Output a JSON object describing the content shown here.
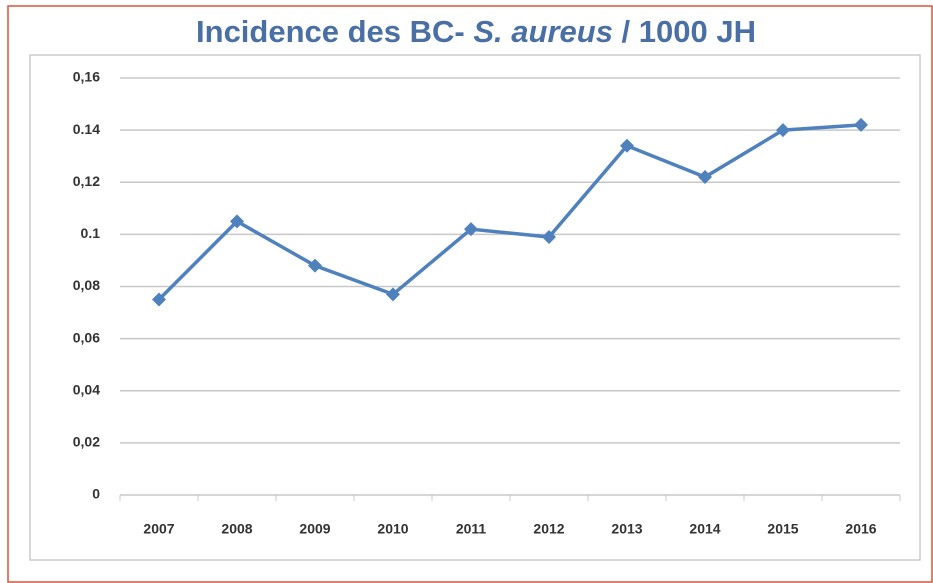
{
  "chart_data": {
    "type": "line",
    "title": [
      "Incidence des BC- ",
      "S. aureus",
      " / 1000 JH"
    ],
    "categories": [
      "2007",
      "2008",
      "2009",
      "2010",
      "2011",
      "2012",
      "2013",
      "2014",
      "2015",
      "2016"
    ],
    "series": [
      {
        "color": "#4f81bd",
        "values": [
          0.075,
          0.105,
          0.088,
          0.077,
          0.102,
          0.099,
          0.134,
          0.122,
          0.14,
          0.142
        ]
      }
    ],
    "ylim": [
      0,
      0.16
    ],
    "yticks": [
      {
        "value": 0,
        "label": "0"
      },
      {
        "value": 0.02,
        "label": "0,02"
      },
      {
        "value": 0.04,
        "label": "0,04"
      },
      {
        "value": 0.06,
        "label": "0,06"
      },
      {
        "value": 0.08,
        "label": "0,08"
      },
      0.1,
      {
        "value": 0.12,
        "label": "0,12"
      },
      0.14,
      {
        "value": 0.16,
        "label": "0,16"
      }
    ],
    "grid": true
  }
}
